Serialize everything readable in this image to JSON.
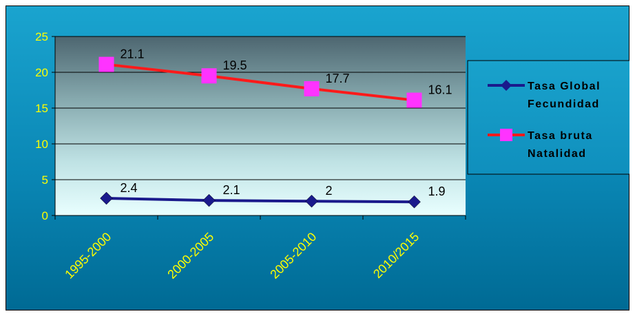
{
  "chart_data": {
    "type": "line",
    "title": "",
    "xlabel": "",
    "ylabel": "",
    "categories": [
      "1995-2000",
      "2000-2005",
      "2005-2010",
      "2010/2015"
    ],
    "ylim": [
      0,
      25
    ],
    "yticks": [
      "0",
      "5",
      "10",
      "15",
      "20",
      "25"
    ],
    "grid": true,
    "legend_position": "right",
    "series": [
      {
        "name": "Tasa Global Fecundidad",
        "legend_lines": [
          "Tasa Global",
          "Fecundidad"
        ],
        "values": [
          2.4,
          2.1,
          2,
          1.9
        ],
        "labels": [
          "2.4",
          "2.1",
          "2",
          "1.9"
        ],
        "color": "#1a1a8c",
        "marker": "diamond",
        "marker_color": "#1a1a8c"
      },
      {
        "name": "Tasa bruta Natalidad",
        "legend_lines": [
          "Tasa bruta",
          "Natalidad"
        ],
        "values": [
          21.1,
          19.5,
          17.7,
          16.1
        ],
        "labels": [
          "21.1",
          "19.5",
          "17.7",
          "16.1"
        ],
        "color": "#ff1a1a",
        "marker": "square",
        "marker_color": "#ff33ff"
      }
    ],
    "colors": {
      "tick_label": "#ffff00",
      "data_label": "#000000"
    }
  }
}
